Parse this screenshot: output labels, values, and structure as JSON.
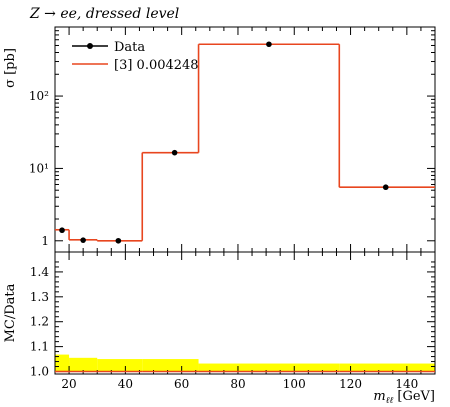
{
  "title": "Z → ee, dressed level",
  "chart_data": [
    {
      "type": "line",
      "panel": "main",
      "ylabel": "σ [pb]",
      "yscale": "log",
      "ylim": [
        0.7,
        900
      ],
      "xlim": [
        15,
        150
      ],
      "yticklabels": [
        {
          "value": 1,
          "label": "1"
        },
        {
          "value": 10,
          "label": "10¹"
        },
        {
          "value": 100,
          "label": "10²"
        }
      ],
      "legend_placement": "top-left",
      "series": [
        {
          "name": "Data",
          "style": "points",
          "color": "#000000",
          "x": [
            17.5,
            25,
            37.5,
            57.5,
            91,
            132.5
          ],
          "y": [
            1.4,
            1.02,
            1.0,
            16.5,
            520,
            5.5
          ]
        },
        {
          "name": "[3] 0.004248",
          "style": "step",
          "color": "#e8461f",
          "edges": [
            15,
            20,
            30,
            46,
            66,
            116,
            150
          ],
          "values": [
            1.42,
            1.03,
            1.0,
            16.5,
            520,
            5.5
          ]
        }
      ]
    },
    {
      "type": "line",
      "panel": "ratio",
      "ylabel": "MC/Data",
      "xlabel": "m_ℓℓ [GeV]",
      "xlim": [
        15,
        150
      ],
      "ylim": [
        0.99,
        1.48
      ],
      "xticks": [
        20,
        40,
        60,
        80,
        100,
        120,
        140
      ],
      "yticks": [
        1.0,
        1.1,
        1.2,
        1.3,
        1.4
      ],
      "band_color": "#ffff00",
      "band": {
        "edges": [
          15,
          20,
          30,
          46,
          66,
          116,
          150
        ],
        "upper": [
          1.068,
          1.055,
          1.05,
          1.05,
          1.032,
          1.032
        ],
        "lower": [
          1.0,
          1.0,
          1.0,
          1.0,
          1.0,
          1.0
        ]
      },
      "series": [
        {
          "name": "[3] 0.004248",
          "style": "step",
          "color": "#e8461f",
          "edges": [
            15,
            20,
            30,
            46,
            66,
            116,
            150
          ],
          "values": [
            1.0,
            1.0,
            1.0,
            1.0,
            1.0,
            1.0
          ]
        }
      ]
    }
  ]
}
